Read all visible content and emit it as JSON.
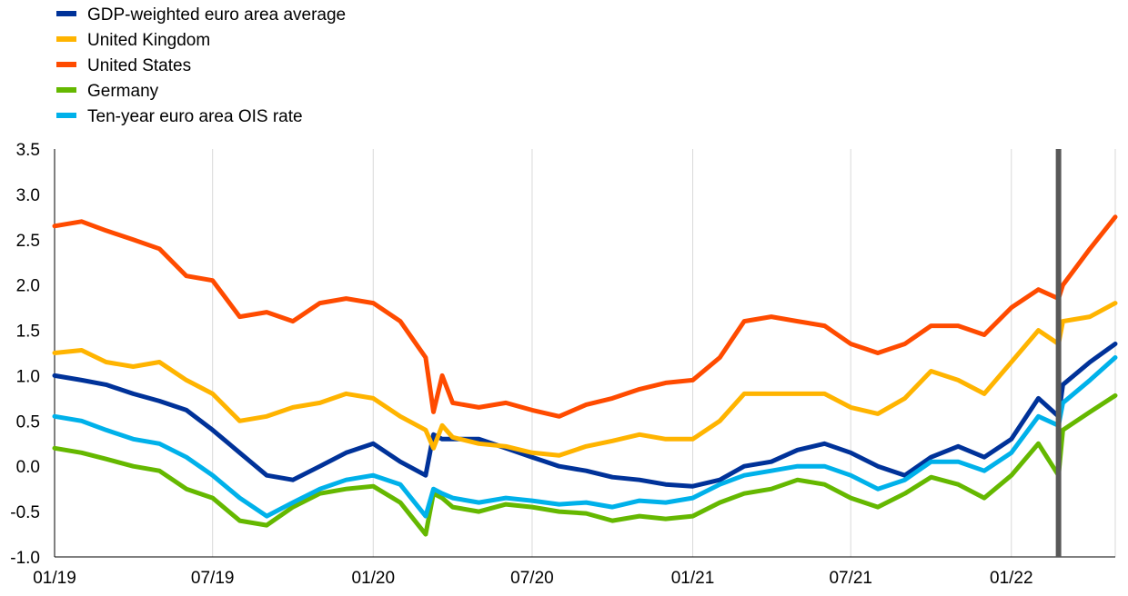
{
  "chart_data": {
    "type": "line",
    "title": "",
    "xlabel": "",
    "ylabel": "",
    "x_tick_labels": [
      "01/19",
      "07/19",
      "01/20",
      "07/20",
      "01/21",
      "07/21",
      "01/22"
    ],
    "y_tick_labels": [
      "3.5",
      "3.0",
      "2.5",
      "2.0",
      "1.5",
      "1.0",
      "0.5",
      "0.0",
      "-0.5",
      "-1.0"
    ],
    "ylim": [
      -1.0,
      3.5
    ],
    "xlim": [
      "2019-01-01",
      "2022-04-30"
    ],
    "grid": "vertical",
    "legend_position": "top-left",
    "marker_line_date": "2022-02-24",
    "marker_line_color": "#595959",
    "series": [
      {
        "name": "GDP-weighted euro area average",
        "color": "#003299",
        "points": [
          [
            "2019-01-01",
            1.0
          ],
          [
            "2019-02-01",
            0.95
          ],
          [
            "2019-03-01",
            0.9
          ],
          [
            "2019-04-01",
            0.8
          ],
          [
            "2019-05-01",
            0.72
          ],
          [
            "2019-06-01",
            0.62
          ],
          [
            "2019-07-01",
            0.4
          ],
          [
            "2019-08-01",
            0.15
          ],
          [
            "2019-09-01",
            -0.1
          ],
          [
            "2019-10-01",
            -0.15
          ],
          [
            "2019-11-01",
            0.0
          ],
          [
            "2019-12-01",
            0.15
          ],
          [
            "2020-01-01",
            0.25
          ],
          [
            "2020-02-01",
            0.05
          ],
          [
            "2020-03-01",
            -0.1
          ],
          [
            "2020-03-10",
            0.35
          ],
          [
            "2020-03-20",
            0.3
          ],
          [
            "2020-04-01",
            0.3
          ],
          [
            "2020-05-01",
            0.3
          ],
          [
            "2020-06-01",
            0.2
          ],
          [
            "2020-07-01",
            0.1
          ],
          [
            "2020-08-01",
            0.0
          ],
          [
            "2020-09-01",
            -0.05
          ],
          [
            "2020-10-01",
            -0.12
          ],
          [
            "2020-11-01",
            -0.15
          ],
          [
            "2020-12-01",
            -0.2
          ],
          [
            "2021-01-01",
            -0.22
          ],
          [
            "2021-02-01",
            -0.15
          ],
          [
            "2021-03-01",
            0.0
          ],
          [
            "2021-04-01",
            0.05
          ],
          [
            "2021-05-01",
            0.18
          ],
          [
            "2021-06-01",
            0.25
          ],
          [
            "2021-07-01",
            0.15
          ],
          [
            "2021-08-01",
            0.0
          ],
          [
            "2021-09-01",
            -0.1
          ],
          [
            "2021-10-01",
            0.1
          ],
          [
            "2021-11-01",
            0.22
          ],
          [
            "2021-12-01",
            0.1
          ],
          [
            "2022-01-01",
            0.3
          ],
          [
            "2022-02-01",
            0.75
          ],
          [
            "2022-02-24",
            0.55
          ],
          [
            "2022-03-01",
            0.9
          ],
          [
            "2022-04-01",
            1.15
          ],
          [
            "2022-04-30",
            1.35
          ]
        ]
      },
      {
        "name": "United Kingdom",
        "color": "#ffb400",
        "points": [
          [
            "2019-01-01",
            1.25
          ],
          [
            "2019-02-01",
            1.28
          ],
          [
            "2019-03-01",
            1.15
          ],
          [
            "2019-04-01",
            1.1
          ],
          [
            "2019-05-01",
            1.15
          ],
          [
            "2019-06-01",
            0.95
          ],
          [
            "2019-07-01",
            0.8
          ],
          [
            "2019-08-01",
            0.5
          ],
          [
            "2019-09-01",
            0.55
          ],
          [
            "2019-10-01",
            0.65
          ],
          [
            "2019-11-01",
            0.7
          ],
          [
            "2019-12-01",
            0.8
          ],
          [
            "2020-01-01",
            0.75
          ],
          [
            "2020-02-01",
            0.55
          ],
          [
            "2020-03-01",
            0.4
          ],
          [
            "2020-03-10",
            0.2
          ],
          [
            "2020-03-20",
            0.45
          ],
          [
            "2020-04-01",
            0.32
          ],
          [
            "2020-05-01",
            0.25
          ],
          [
            "2020-06-01",
            0.22
          ],
          [
            "2020-07-01",
            0.15
          ],
          [
            "2020-08-01",
            0.12
          ],
          [
            "2020-09-01",
            0.22
          ],
          [
            "2020-10-01",
            0.28
          ],
          [
            "2020-11-01",
            0.35
          ],
          [
            "2020-12-01",
            0.3
          ],
          [
            "2021-01-01",
            0.3
          ],
          [
            "2021-02-01",
            0.5
          ],
          [
            "2021-03-01",
            0.8
          ],
          [
            "2021-04-01",
            0.8
          ],
          [
            "2021-05-01",
            0.8
          ],
          [
            "2021-06-01",
            0.8
          ],
          [
            "2021-07-01",
            0.65
          ],
          [
            "2021-08-01",
            0.58
          ],
          [
            "2021-09-01",
            0.75
          ],
          [
            "2021-10-01",
            1.05
          ],
          [
            "2021-11-01",
            0.95
          ],
          [
            "2021-12-01",
            0.8
          ],
          [
            "2022-01-01",
            1.15
          ],
          [
            "2022-02-01",
            1.5
          ],
          [
            "2022-02-24",
            1.35
          ],
          [
            "2022-03-01",
            1.6
          ],
          [
            "2022-04-01",
            1.65
          ],
          [
            "2022-04-30",
            1.8
          ]
        ]
      },
      {
        "name": "United States",
        "color": "#ff4b00",
        "points": [
          [
            "2019-01-01",
            2.65
          ],
          [
            "2019-02-01",
            2.7
          ],
          [
            "2019-03-01",
            2.6
          ],
          [
            "2019-04-01",
            2.5
          ],
          [
            "2019-05-01",
            2.4
          ],
          [
            "2019-06-01",
            2.1
          ],
          [
            "2019-07-01",
            2.05
          ],
          [
            "2019-08-01",
            1.65
          ],
          [
            "2019-09-01",
            1.7
          ],
          [
            "2019-10-01",
            1.6
          ],
          [
            "2019-11-01",
            1.8
          ],
          [
            "2019-12-01",
            1.85
          ],
          [
            "2020-01-01",
            1.8
          ],
          [
            "2020-02-01",
            1.6
          ],
          [
            "2020-03-01",
            1.2
          ],
          [
            "2020-03-10",
            0.6
          ],
          [
            "2020-03-20",
            1.0
          ],
          [
            "2020-04-01",
            0.7
          ],
          [
            "2020-05-01",
            0.65
          ],
          [
            "2020-06-01",
            0.7
          ],
          [
            "2020-07-01",
            0.62
          ],
          [
            "2020-08-01",
            0.55
          ],
          [
            "2020-09-01",
            0.68
          ],
          [
            "2020-10-01",
            0.75
          ],
          [
            "2020-11-01",
            0.85
          ],
          [
            "2020-12-01",
            0.92
          ],
          [
            "2021-01-01",
            0.95
          ],
          [
            "2021-02-01",
            1.2
          ],
          [
            "2021-03-01",
            1.6
          ],
          [
            "2021-04-01",
            1.65
          ],
          [
            "2021-05-01",
            1.6
          ],
          [
            "2021-06-01",
            1.55
          ],
          [
            "2021-07-01",
            1.35
          ],
          [
            "2021-08-01",
            1.25
          ],
          [
            "2021-09-01",
            1.35
          ],
          [
            "2021-10-01",
            1.55
          ],
          [
            "2021-11-01",
            1.55
          ],
          [
            "2021-12-01",
            1.45
          ],
          [
            "2022-01-01",
            1.75
          ],
          [
            "2022-02-01",
            1.95
          ],
          [
            "2022-02-24",
            1.85
          ],
          [
            "2022-03-01",
            2.0
          ],
          [
            "2022-04-01",
            2.4
          ],
          [
            "2022-04-30",
            2.75
          ]
        ]
      },
      {
        "name": "Germany",
        "color": "#65b800",
        "points": [
          [
            "2019-01-01",
            0.2
          ],
          [
            "2019-02-01",
            0.15
          ],
          [
            "2019-03-01",
            0.08
          ],
          [
            "2019-04-01",
            0.0
          ],
          [
            "2019-05-01",
            -0.05
          ],
          [
            "2019-06-01",
            -0.25
          ],
          [
            "2019-07-01",
            -0.35
          ],
          [
            "2019-08-01",
            -0.6
          ],
          [
            "2019-09-01",
            -0.65
          ],
          [
            "2019-10-01",
            -0.45
          ],
          [
            "2019-11-01",
            -0.3
          ],
          [
            "2019-12-01",
            -0.25
          ],
          [
            "2020-01-01",
            -0.22
          ],
          [
            "2020-02-01",
            -0.4
          ],
          [
            "2020-03-01",
            -0.75
          ],
          [
            "2020-03-10",
            -0.3
          ],
          [
            "2020-03-20",
            -0.35
          ],
          [
            "2020-04-01",
            -0.45
          ],
          [
            "2020-05-01",
            -0.5
          ],
          [
            "2020-06-01",
            -0.42
          ],
          [
            "2020-07-01",
            -0.45
          ],
          [
            "2020-08-01",
            -0.5
          ],
          [
            "2020-09-01",
            -0.52
          ],
          [
            "2020-10-01",
            -0.6
          ],
          [
            "2020-11-01",
            -0.55
          ],
          [
            "2020-12-01",
            -0.58
          ],
          [
            "2021-01-01",
            -0.55
          ],
          [
            "2021-02-01",
            -0.4
          ],
          [
            "2021-03-01",
            -0.3
          ],
          [
            "2021-04-01",
            -0.25
          ],
          [
            "2021-05-01",
            -0.15
          ],
          [
            "2021-06-01",
            -0.2
          ],
          [
            "2021-07-01",
            -0.35
          ],
          [
            "2021-08-01",
            -0.45
          ],
          [
            "2021-09-01",
            -0.3
          ],
          [
            "2021-10-01",
            -0.12
          ],
          [
            "2021-11-01",
            -0.2
          ],
          [
            "2021-12-01",
            -0.35
          ],
          [
            "2022-01-01",
            -0.1
          ],
          [
            "2022-02-01",
            0.25
          ],
          [
            "2022-02-24",
            -0.1
          ],
          [
            "2022-03-01",
            0.4
          ],
          [
            "2022-04-01",
            0.6
          ],
          [
            "2022-04-30",
            0.78
          ]
        ]
      },
      {
        "name": "Ten-year euro area OIS rate",
        "color": "#00b1ea",
        "points": [
          [
            "2019-01-01",
            0.55
          ],
          [
            "2019-02-01",
            0.5
          ],
          [
            "2019-03-01",
            0.4
          ],
          [
            "2019-04-01",
            0.3
          ],
          [
            "2019-05-01",
            0.25
          ],
          [
            "2019-06-01",
            0.1
          ],
          [
            "2019-07-01",
            -0.1
          ],
          [
            "2019-08-01",
            -0.35
          ],
          [
            "2019-09-01",
            -0.55
          ],
          [
            "2019-10-01",
            -0.4
          ],
          [
            "2019-11-01",
            -0.25
          ],
          [
            "2019-12-01",
            -0.15
          ],
          [
            "2020-01-01",
            -0.1
          ],
          [
            "2020-02-01",
            -0.2
          ],
          [
            "2020-03-01",
            -0.55
          ],
          [
            "2020-03-10",
            -0.25
          ],
          [
            "2020-03-20",
            -0.3
          ],
          [
            "2020-04-01",
            -0.35
          ],
          [
            "2020-05-01",
            -0.4
          ],
          [
            "2020-06-01",
            -0.35
          ],
          [
            "2020-07-01",
            -0.38
          ],
          [
            "2020-08-01",
            -0.42
          ],
          [
            "2020-09-01",
            -0.4
          ],
          [
            "2020-10-01",
            -0.45
          ],
          [
            "2020-11-01",
            -0.38
          ],
          [
            "2020-12-01",
            -0.4
          ],
          [
            "2021-01-01",
            -0.35
          ],
          [
            "2021-02-01",
            -0.2
          ],
          [
            "2021-03-01",
            -0.1
          ],
          [
            "2021-04-01",
            -0.05
          ],
          [
            "2021-05-01",
            0.0
          ],
          [
            "2021-06-01",
            0.0
          ],
          [
            "2021-07-01",
            -0.1
          ],
          [
            "2021-08-01",
            -0.25
          ],
          [
            "2021-09-01",
            -0.15
          ],
          [
            "2021-10-01",
            0.05
          ],
          [
            "2021-11-01",
            0.05
          ],
          [
            "2021-12-01",
            -0.05
          ],
          [
            "2022-01-01",
            0.15
          ],
          [
            "2022-02-01",
            0.55
          ],
          [
            "2022-02-24",
            0.45
          ],
          [
            "2022-03-01",
            0.7
          ],
          [
            "2022-04-01",
            0.95
          ],
          [
            "2022-04-30",
            1.2
          ]
        ]
      }
    ]
  }
}
